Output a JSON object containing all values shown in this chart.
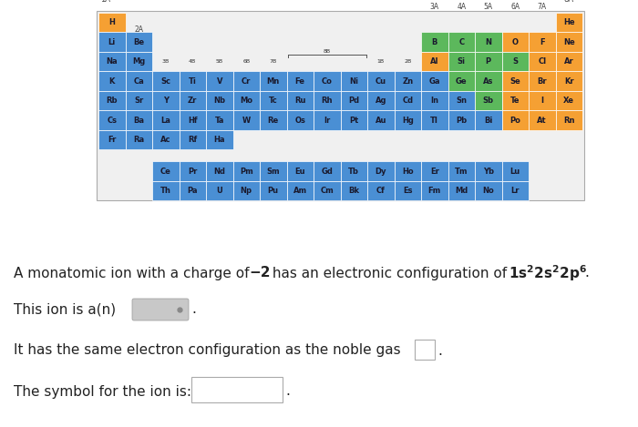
{
  "pt_rows": [
    {
      "row": 0,
      "elements": [
        {
          "symbol": "H",
          "col": 0,
          "color": "#f5a033"
        },
        {
          "symbol": "He",
          "col": 17,
          "color": "#f5a033"
        }
      ]
    },
    {
      "row": 1,
      "elements": [
        {
          "symbol": "Li",
          "col": 0,
          "color": "#4a8fd4"
        },
        {
          "symbol": "Be",
          "col": 1,
          "color": "#4a8fd4"
        },
        {
          "symbol": "B",
          "col": 12,
          "color": "#5cb85c"
        },
        {
          "symbol": "C",
          "col": 13,
          "color": "#5cb85c"
        },
        {
          "symbol": "N",
          "col": 14,
          "color": "#5cb85c"
        },
        {
          "symbol": "O",
          "col": 15,
          "color": "#f5a033"
        },
        {
          "symbol": "F",
          "col": 16,
          "color": "#f5a033"
        },
        {
          "symbol": "Ne",
          "col": 17,
          "color": "#f5a033"
        }
      ]
    },
    {
      "row": 2,
      "elements": [
        {
          "symbol": "Na",
          "col": 0,
          "color": "#4a8fd4"
        },
        {
          "symbol": "Mg",
          "col": 1,
          "color": "#4a8fd4"
        },
        {
          "symbol": "Al",
          "col": 12,
          "color": "#f5a033"
        },
        {
          "symbol": "Si",
          "col": 13,
          "color": "#5cb85c"
        },
        {
          "symbol": "P",
          "col": 14,
          "color": "#5cb85c"
        },
        {
          "symbol": "S",
          "col": 15,
          "color": "#5cb85c"
        },
        {
          "symbol": "Cl",
          "col": 16,
          "color": "#f5a033"
        },
        {
          "symbol": "Ar",
          "col": 17,
          "color": "#f5a033"
        }
      ]
    },
    {
      "row": 3,
      "elements": [
        {
          "symbol": "K",
          "col": 0,
          "color": "#4a8fd4"
        },
        {
          "symbol": "Ca",
          "col": 1,
          "color": "#4a8fd4"
        },
        {
          "symbol": "Sc",
          "col": 2,
          "color": "#4a8fd4"
        },
        {
          "symbol": "Ti",
          "col": 3,
          "color": "#4a8fd4"
        },
        {
          "symbol": "V",
          "col": 4,
          "color": "#4a8fd4"
        },
        {
          "symbol": "Cr",
          "col": 5,
          "color": "#4a8fd4"
        },
        {
          "symbol": "Mn",
          "col": 6,
          "color": "#4a8fd4"
        },
        {
          "symbol": "Fe",
          "col": 7,
          "color": "#4a8fd4"
        },
        {
          "symbol": "Co",
          "col": 8,
          "color": "#4a8fd4"
        },
        {
          "symbol": "Ni",
          "col": 9,
          "color": "#4a8fd4"
        },
        {
          "symbol": "Cu",
          "col": 10,
          "color": "#4a8fd4"
        },
        {
          "symbol": "Zn",
          "col": 11,
          "color": "#4a8fd4"
        },
        {
          "symbol": "Ga",
          "col": 12,
          "color": "#4a8fd4"
        },
        {
          "symbol": "Ge",
          "col": 13,
          "color": "#5cb85c"
        },
        {
          "symbol": "As",
          "col": 14,
          "color": "#5cb85c"
        },
        {
          "symbol": "Se",
          "col": 15,
          "color": "#f5a033"
        },
        {
          "symbol": "Br",
          "col": 16,
          "color": "#f5a033"
        },
        {
          "symbol": "Kr",
          "col": 17,
          "color": "#f5a033"
        }
      ]
    },
    {
      "row": 4,
      "elements": [
        {
          "symbol": "Rb",
          "col": 0,
          "color": "#4a8fd4"
        },
        {
          "symbol": "Sr",
          "col": 1,
          "color": "#4a8fd4"
        },
        {
          "symbol": "Y",
          "col": 2,
          "color": "#4a8fd4"
        },
        {
          "symbol": "Zr",
          "col": 3,
          "color": "#4a8fd4"
        },
        {
          "symbol": "Nb",
          "col": 4,
          "color": "#4a8fd4"
        },
        {
          "symbol": "Mo",
          "col": 5,
          "color": "#4a8fd4"
        },
        {
          "symbol": "Tc",
          "col": 6,
          "color": "#4a8fd4"
        },
        {
          "symbol": "Ru",
          "col": 7,
          "color": "#4a8fd4"
        },
        {
          "symbol": "Rh",
          "col": 8,
          "color": "#4a8fd4"
        },
        {
          "symbol": "Pd",
          "col": 9,
          "color": "#4a8fd4"
        },
        {
          "symbol": "Ag",
          "col": 10,
          "color": "#4a8fd4"
        },
        {
          "symbol": "Cd",
          "col": 11,
          "color": "#4a8fd4"
        },
        {
          "symbol": "In",
          "col": 12,
          "color": "#4a8fd4"
        },
        {
          "symbol": "Sn",
          "col": 13,
          "color": "#4a8fd4"
        },
        {
          "symbol": "Sb",
          "col": 14,
          "color": "#5cb85c"
        },
        {
          "symbol": "Te",
          "col": 15,
          "color": "#f5a033"
        },
        {
          "symbol": "I",
          "col": 16,
          "color": "#f5a033"
        },
        {
          "symbol": "Xe",
          "col": 17,
          "color": "#f5a033"
        }
      ]
    },
    {
      "row": 5,
      "elements": [
        {
          "symbol": "Cs",
          "col": 0,
          "color": "#4a8fd4"
        },
        {
          "symbol": "Ba",
          "col": 1,
          "color": "#4a8fd4"
        },
        {
          "symbol": "La",
          "col": 2,
          "color": "#4a8fd4"
        },
        {
          "symbol": "Hf",
          "col": 3,
          "color": "#4a8fd4"
        },
        {
          "symbol": "Ta",
          "col": 4,
          "color": "#4a8fd4"
        },
        {
          "symbol": "W",
          "col": 5,
          "color": "#4a8fd4"
        },
        {
          "symbol": "Re",
          "col": 6,
          "color": "#4a8fd4"
        },
        {
          "symbol": "Os",
          "col": 7,
          "color": "#4a8fd4"
        },
        {
          "symbol": "Ir",
          "col": 8,
          "color": "#4a8fd4"
        },
        {
          "symbol": "Pt",
          "col": 9,
          "color": "#4a8fd4"
        },
        {
          "symbol": "Au",
          "col": 10,
          "color": "#4a8fd4"
        },
        {
          "symbol": "Hg",
          "col": 11,
          "color": "#4a8fd4"
        },
        {
          "symbol": "Tl",
          "col": 12,
          "color": "#4a8fd4"
        },
        {
          "symbol": "Pb",
          "col": 13,
          "color": "#4a8fd4"
        },
        {
          "symbol": "Bi",
          "col": 14,
          "color": "#4a8fd4"
        },
        {
          "symbol": "Po",
          "col": 15,
          "color": "#f5a033"
        },
        {
          "symbol": "At",
          "col": 16,
          "color": "#f5a033"
        },
        {
          "symbol": "Rn",
          "col": 17,
          "color": "#f5a033"
        }
      ]
    },
    {
      "row": 6,
      "elements": [
        {
          "symbol": "Fr",
          "col": 0,
          "color": "#4a8fd4"
        },
        {
          "symbol": "Ra",
          "col": 1,
          "color": "#4a8fd4"
        },
        {
          "symbol": "Ac",
          "col": 2,
          "color": "#4a8fd4"
        },
        {
          "symbol": "Rf",
          "col": 3,
          "color": "#4a8fd4"
        },
        {
          "symbol": "Ha",
          "col": 4,
          "color": "#4a8fd4"
        }
      ]
    }
  ],
  "lanthanides": [
    "Ce",
    "Pr",
    "Nd",
    "Pm",
    "Sm",
    "Eu",
    "Gd",
    "Tb",
    "Dy",
    "Ho",
    "Er",
    "Tm",
    "Yb",
    "Lu"
  ],
  "actinides": [
    "Th",
    "Pa",
    "U",
    "Np",
    "Pu",
    "Am",
    "Cm",
    "Bk",
    "Cf",
    "Es",
    "Fm",
    "Md",
    "No",
    "Lr"
  ],
  "lan_color": "#4a8fd4",
  "act_color": "#4a8fd4",
  "bg_color": "#f0f0f0",
  "text_color": "#222222",
  "cell_text_color": "#1a1a2e"
}
